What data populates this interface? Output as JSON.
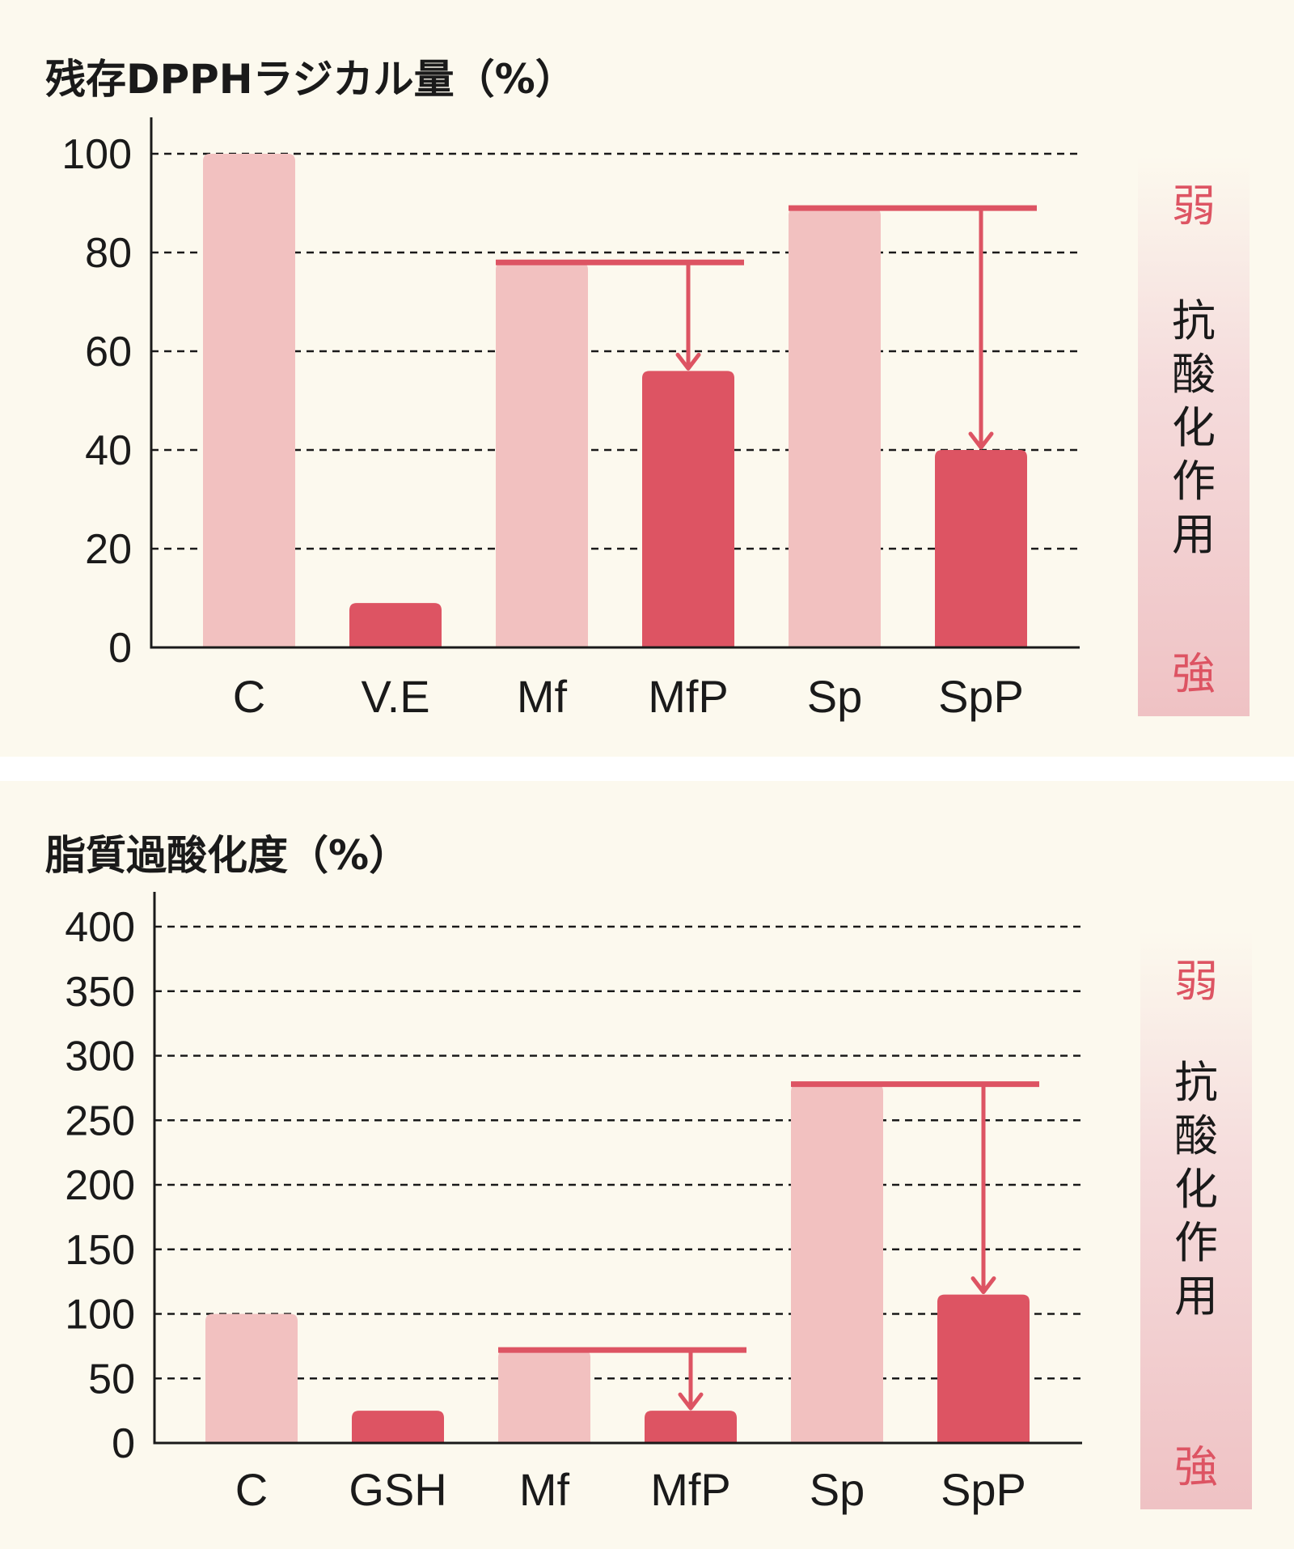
{
  "chart_data": [
    {
      "type": "bar",
      "title": "残存DPPHラジカル量（%）",
      "categories": [
        "C",
        "V.E",
        "Mf",
        "MfP",
        "Sp",
        "SpP"
      ],
      "values": [
        100,
        9,
        78,
        56,
        89,
        40
      ],
      "ylim": [
        0,
        100
      ],
      "yticks": [
        0,
        20,
        40,
        60,
        80,
        100
      ],
      "grid": true,
      "colors": {
        "control": "#f2c1c0",
        "treated": "#dd5463",
        "arrow": "#dd5463"
      },
      "bar_kind": [
        "control",
        "treated",
        "control",
        "treated",
        "control",
        "treated"
      ],
      "arrows": [
        {
          "from": "Mf",
          "to": "MfP",
          "from_value": 78,
          "to_value": 56
        },
        {
          "from": "Sp",
          "to": "SpP",
          "from_value": 89,
          "to_value": 40
        }
      ],
      "side_scale": {
        "weak": "弱",
        "effect": [
          "抗",
          "酸",
          "化",
          "作",
          "用"
        ],
        "strong": "強"
      }
    },
    {
      "type": "bar",
      "title": "脂質過酸化度（%）",
      "categories": [
        "C",
        "GSH",
        "Mf",
        "MfP",
        "Sp",
        "SpP"
      ],
      "values": [
        100,
        25,
        72,
        25,
        278,
        115
      ],
      "ylim": [
        0,
        400
      ],
      "yticks": [
        0,
        50,
        100,
        150,
        200,
        250,
        300,
        350,
        400
      ],
      "grid": true,
      "colors": {
        "control": "#f2c1c0",
        "treated": "#dd5463",
        "arrow": "#dd5463"
      },
      "bar_kind": [
        "control",
        "treated",
        "control",
        "treated",
        "control",
        "treated"
      ],
      "arrows": [
        {
          "from": "Mf",
          "to": "MfP",
          "from_value": 72,
          "to_value": 25
        },
        {
          "from": "Sp",
          "to": "SpP",
          "from_value": 278,
          "to_value": 115
        }
      ],
      "side_scale": {
        "weak": "弱",
        "effect": [
          "抗",
          "酸",
          "化",
          "作",
          "用"
        ],
        "strong": "強"
      }
    }
  ]
}
